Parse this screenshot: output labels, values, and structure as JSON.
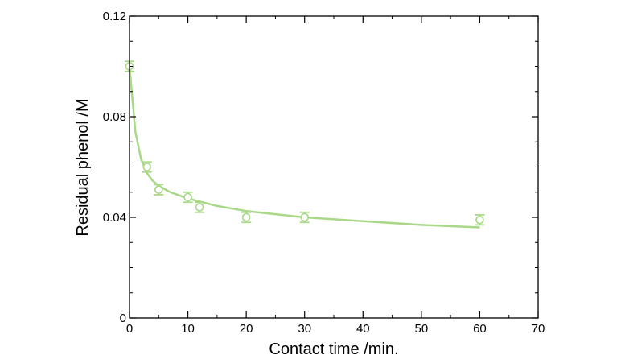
{
  "chart_data": {
    "type": "scatter",
    "title": "",
    "xlabel": "Contact time /min.",
    "ylabel": "Residual phenol /M",
    "xlim": [
      0,
      70
    ],
    "ylim": [
      0,
      0.12
    ],
    "xticks": [
      0,
      10,
      20,
      30,
      40,
      50,
      60,
      70
    ],
    "yticks": [
      0,
      0.04,
      0.08,
      0.12
    ],
    "xtick_labels": [
      "0",
      "10",
      "20",
      "30",
      "40",
      "50",
      "60",
      "70"
    ],
    "ytick_labels": [
      "0",
      "0.04",
      "0.08",
      "0.12"
    ],
    "color": "#a8d888",
    "grid": false,
    "series": [
      {
        "x": [
          0,
          3,
          5,
          10,
          12,
          20,
          30,
          60
        ],
        "y": [
          0.1,
          0.06,
          0.051,
          0.048,
          0.044,
          0.04,
          0.04,
          0.039
        ],
        "error": [
          0.002,
          0.002,
          0.002,
          0.002,
          0.002,
          0.002,
          0.002,
          0.002
        ],
        "marker": "open-circle"
      }
    ],
    "fit_curve": {
      "x": [
        0,
        1,
        2,
        3,
        4,
        5,
        7,
        10,
        15,
        20,
        30,
        40,
        50,
        60
      ],
      "y": [
        0.1,
        0.074,
        0.063,
        0.0575,
        0.0545,
        0.0525,
        0.05,
        0.0475,
        0.0445,
        0.0425,
        0.04,
        0.0385,
        0.037,
        0.036
      ]
    }
  }
}
